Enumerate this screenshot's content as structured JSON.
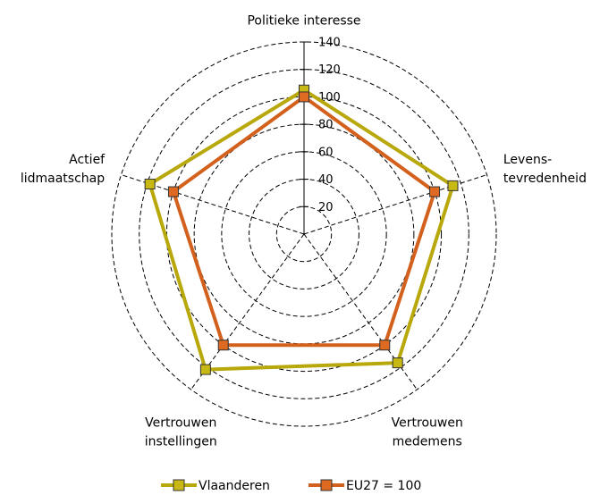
{
  "chart_data": {
    "type": "radar",
    "categories": [
      "Politieke interesse",
      "Levens-\ntevredenheid",
      "Vertrouwen\nmedemens",
      "Vertrouwen\ninstellingen",
      "Actief\nlidmaatschap"
    ],
    "series": [
      {
        "name": "Vlaanderen",
        "color": "#b8a80c",
        "marker": "#c8b814",
        "values": [
          105,
          114,
          116,
          122,
          118
        ]
      },
      {
        "name": "EU27 = 100",
        "color": "#d3601c",
        "marker": "#de6a22",
        "values": [
          100,
          100,
          100,
          100,
          100
        ]
      }
    ],
    "ylim": [
      0,
      140
    ],
    "yticks": [
      20,
      40,
      60,
      80,
      100,
      120,
      140
    ],
    "grid": true,
    "legend": "bottom"
  }
}
